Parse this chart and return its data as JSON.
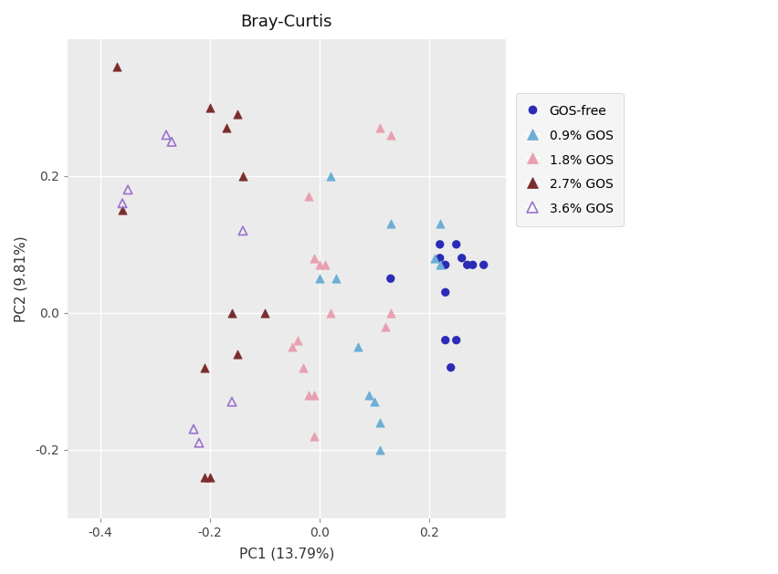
{
  "title": "Bray-Curtis",
  "xlabel": "PC1 (13.79%)",
  "ylabel": "PC2 (9.81%)",
  "xlim": [
    -0.46,
    0.34
  ],
  "ylim": [
    -0.3,
    0.4
  ],
  "xticks": [
    -0.4,
    -0.2,
    0.0,
    0.2
  ],
  "yticks": [
    -0.2,
    0.0,
    0.2
  ],
  "background_color": "#EBEBEB",
  "grid_color": "#FFFFFF",
  "groups": {
    "GOS-free": {
      "marker": "o",
      "color": "#2B2BB5",
      "filled": true,
      "size": 45,
      "points": [
        [
          0.13,
          0.05
        ],
        [
          0.22,
          0.1
        ],
        [
          0.22,
          0.08
        ],
        [
          0.23,
          0.07
        ],
        [
          0.25,
          0.1
        ],
        [
          0.26,
          0.08
        ],
        [
          0.27,
          0.07
        ],
        [
          0.28,
          0.07
        ],
        [
          0.3,
          0.07
        ],
        [
          0.23,
          0.03
        ],
        [
          0.25,
          -0.04
        ],
        [
          0.23,
          -0.04
        ],
        [
          0.24,
          -0.08
        ]
      ]
    },
    "0.9% GOS": {
      "marker": "^",
      "color": "#6BAED6",
      "filled": true,
      "size": 45,
      "points": [
        [
          0.02,
          0.2
        ],
        [
          0.13,
          0.13
        ],
        [
          0.0,
          0.05
        ],
        [
          0.03,
          0.05
        ],
        [
          0.22,
          0.13
        ],
        [
          0.21,
          0.08
        ],
        [
          0.22,
          0.07
        ],
        [
          0.07,
          -0.05
        ],
        [
          0.09,
          -0.12
        ],
        [
          0.1,
          -0.13
        ],
        [
          0.11,
          -0.16
        ],
        [
          0.11,
          -0.2
        ]
      ]
    },
    "1.8% GOS": {
      "marker": "^",
      "color": "#E8A0B0",
      "filled": true,
      "size": 45,
      "points": [
        [
          0.11,
          0.27
        ],
        [
          0.13,
          0.26
        ],
        [
          -0.02,
          0.17
        ],
        [
          -0.01,
          0.08
        ],
        [
          0.0,
          0.07
        ],
        [
          0.01,
          0.07
        ],
        [
          0.02,
          0.0
        ],
        [
          -0.05,
          -0.05
        ],
        [
          -0.04,
          -0.04
        ],
        [
          -0.03,
          -0.08
        ],
        [
          -0.02,
          -0.12
        ],
        [
          -0.01,
          -0.12
        ],
        [
          -0.01,
          -0.18
        ],
        [
          0.13,
          0.0
        ],
        [
          0.12,
          -0.02
        ]
      ]
    },
    "2.7% GOS": {
      "marker": "^",
      "color": "#7B2D2D",
      "filled": true,
      "size": 45,
      "points": [
        [
          -0.37,
          0.36
        ],
        [
          -0.2,
          0.3
        ],
        [
          -0.15,
          0.29
        ],
        [
          -0.17,
          0.27
        ],
        [
          -0.14,
          0.2
        ],
        [
          -0.36,
          0.15
        ],
        [
          -0.1,
          0.0
        ],
        [
          -0.15,
          -0.06
        ],
        [
          -0.21,
          -0.08
        ],
        [
          -0.21,
          -0.24
        ],
        [
          -0.2,
          -0.24
        ],
        [
          -0.16,
          0.0
        ]
      ]
    },
    "3.6% GOS": {
      "marker": "^",
      "color": "#9B72CF",
      "filled": false,
      "size": 45,
      "points": [
        [
          -0.35,
          0.18
        ],
        [
          -0.36,
          0.16
        ],
        [
          -0.28,
          0.26
        ],
        [
          -0.27,
          0.25
        ],
        [
          -0.14,
          0.12
        ],
        [
          -0.23,
          -0.17
        ],
        [
          -0.22,
          -0.19
        ],
        [
          -0.16,
          -0.13
        ]
      ]
    }
  }
}
